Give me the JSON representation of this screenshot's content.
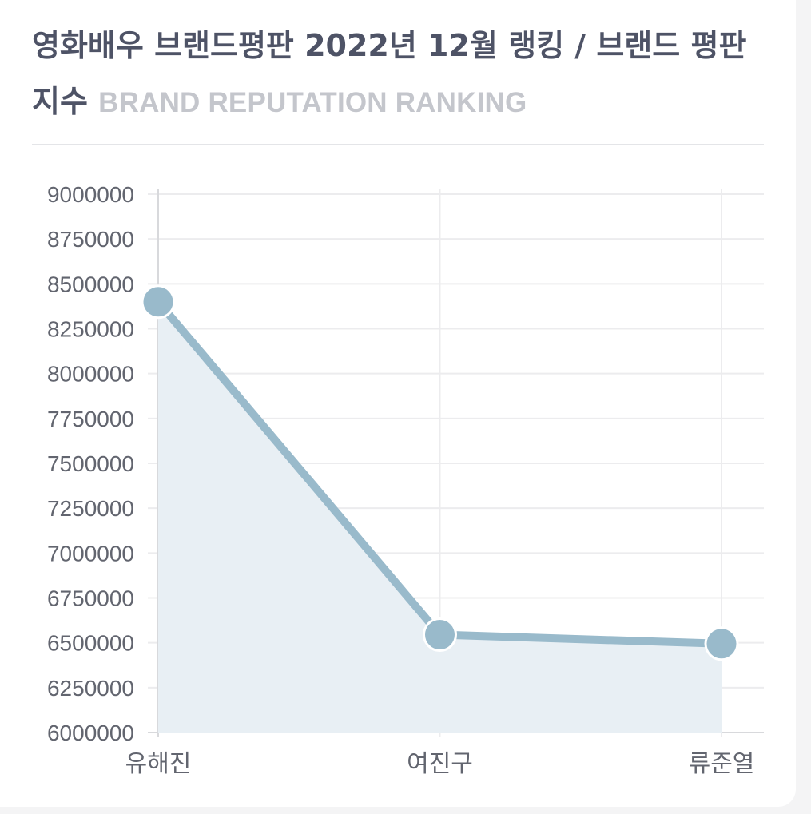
{
  "header": {
    "title": "영화배우 브랜드평판 2022년 12월 랭킹 / 브랜드 평판지수",
    "subtitle": "BRAND REPUTATION RANKING"
  },
  "colors": {
    "line": "#99bacb",
    "fill": "#e8eff4",
    "point": "#99bacb",
    "point_stroke": "#ffffff",
    "grid": "#ececee"
  },
  "chart_data": {
    "type": "area",
    "categories": [
      "유해진",
      "여진구",
      "류준열"
    ],
    "values": [
      8400000,
      6545000,
      6495000
    ],
    "xlabel": "",
    "ylabel": "",
    "ylim": [
      6000000,
      9000000
    ],
    "yticks": [
      9000000,
      8750000,
      8500000,
      8250000,
      8000000,
      7750000,
      7500000,
      7250000,
      7000000,
      6750000,
      6500000,
      6250000,
      6000000
    ],
    "grid": true,
    "legend": "none"
  }
}
